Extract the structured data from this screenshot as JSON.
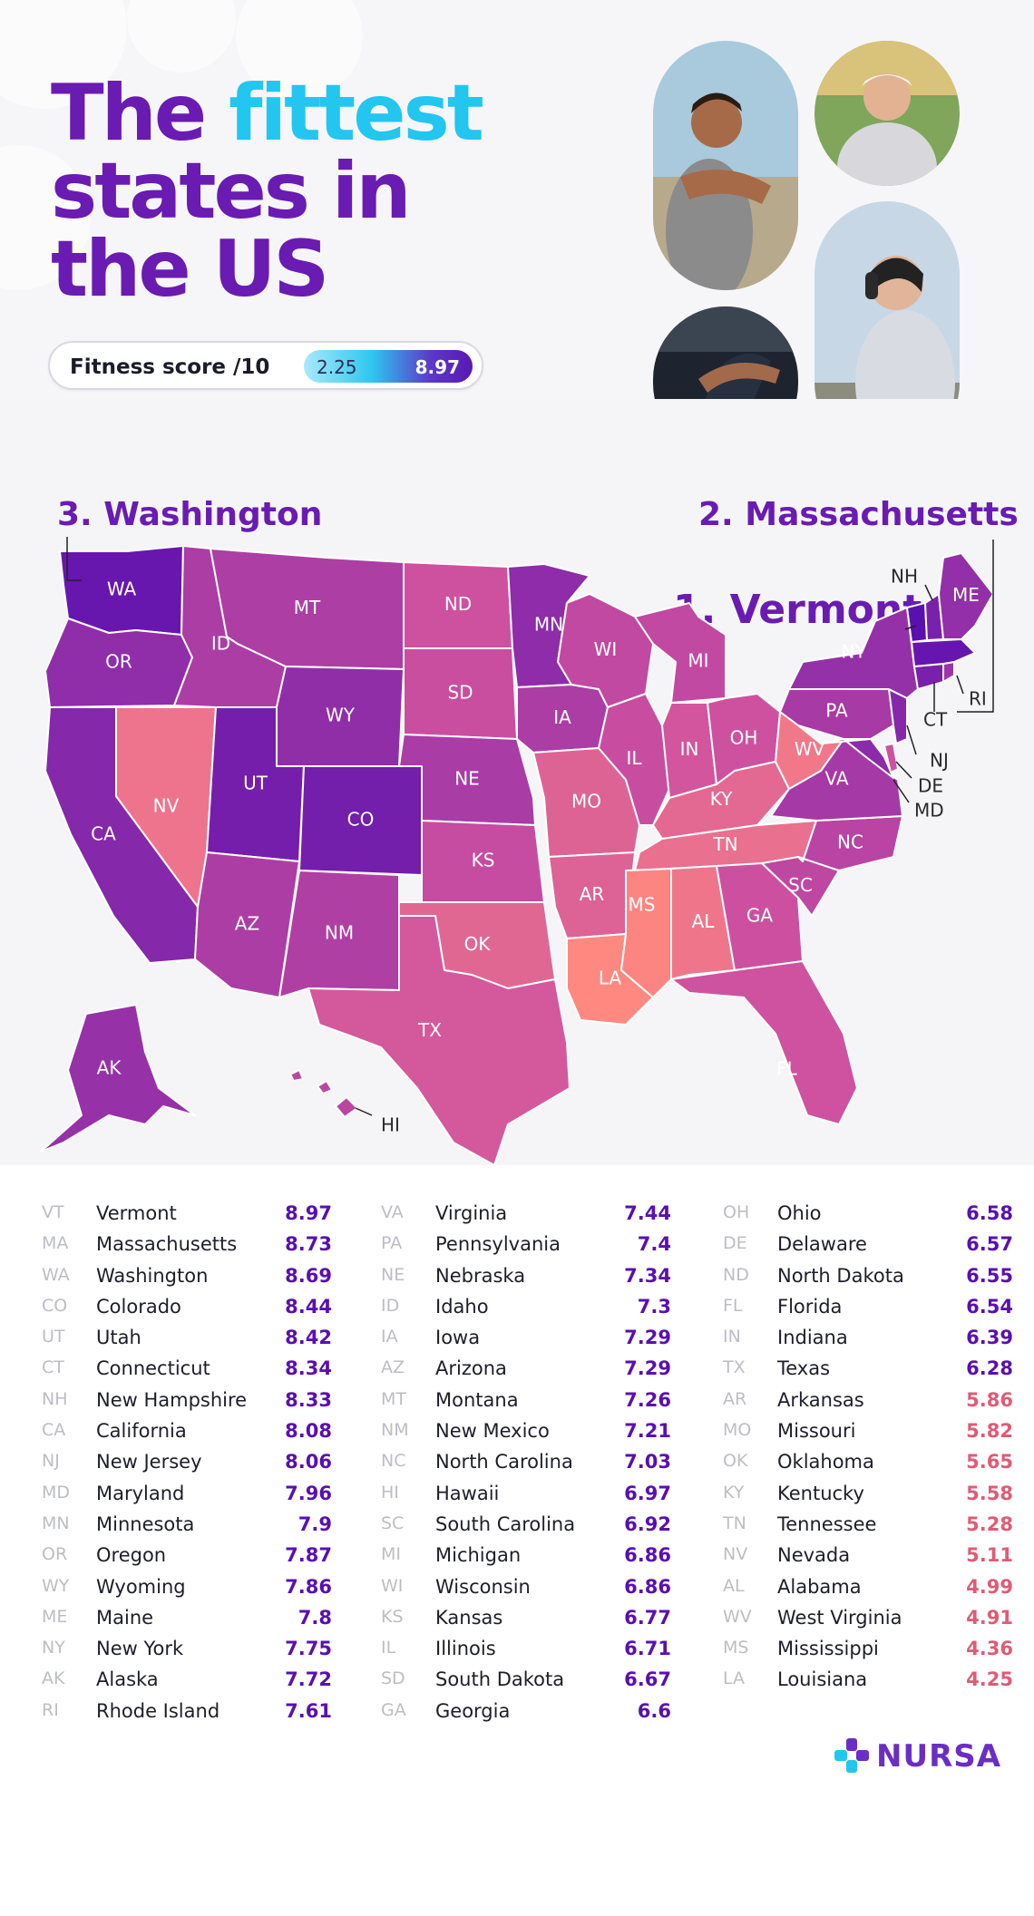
{
  "header": {
    "title_part1": "The ",
    "title_accent": "fittest",
    "title_line2": "states in",
    "title_line3": "the US",
    "score_label": "Fitness score /10",
    "score_min": "2.25",
    "score_max": "8.97"
  },
  "callouts": {
    "first": "1.  Vermont",
    "second": "2. Massachusetts",
    "third": "3. Washington"
  },
  "colors": {
    "title": "#6a1bb2",
    "accent": "#22c6ee",
    "high": "#5a0fb0",
    "low": "#ff8880"
  },
  "map_labels": {
    "WA": "WA",
    "OR": "OR",
    "CA": "CA",
    "ID": "ID",
    "NV": "NV",
    "MT": "MT",
    "WY": "WY",
    "UT": "UT",
    "CO": "CO",
    "AZ": "AZ",
    "NM": "NM",
    "ND": "ND",
    "SD": "SD",
    "NE": "NE",
    "KS": "KS",
    "OK": "OK",
    "TX": "TX",
    "MN": "MN",
    "IA": "IA",
    "MO": "MO",
    "AR": "AR",
    "LA": "LA",
    "WI": "WI",
    "IL": "IL",
    "MI": "MI",
    "IN": "IN",
    "OH": "OH",
    "KY": "KY",
    "TN": "TN",
    "MS": "MS",
    "AL": "AL",
    "GA": "GA",
    "FL": "FL",
    "SC": "SC",
    "NC": "NC",
    "VA": "VA",
    "WV": "WV",
    "PA": "PA",
    "NY": "NY",
    "ME": "ME",
    "NH": "NH",
    "RI": "RI",
    "CT": "CT",
    "NJ": "NJ",
    "DE": "DE",
    "MD": "MD",
    "AK": "AK",
    "HI": "HI"
  },
  "scores": {
    "VT": 8.97,
    "MA": 8.73,
    "WA": 8.69,
    "CO": 8.44,
    "UT": 8.42,
    "CT": 8.34,
    "NH": 8.33,
    "CA": 8.08,
    "NJ": 8.06,
    "MD": 7.96,
    "MN": 7.9,
    "OR": 7.87,
    "WY": 7.86,
    "ME": 7.8,
    "NY": 7.75,
    "AK": 7.72,
    "RI": 7.61,
    "VA": 7.44,
    "PA": 7.4,
    "NE": 7.34,
    "ID": 7.3,
    "IA": 7.29,
    "AZ": 7.29,
    "MT": 7.26,
    "NM": 7.21,
    "NC": 7.03,
    "HI": 6.97,
    "SC": 6.92,
    "MI": 6.86,
    "WI": 6.86,
    "KS": 6.77,
    "IL": 6.71,
    "SD": 6.67,
    "GA": 6.6,
    "OH": 6.58,
    "DE": 6.57,
    "ND": 6.55,
    "FL": 6.54,
    "IN": 6.39,
    "TX": 6.28,
    "AR": 5.86,
    "MO": 5.82,
    "OK": 5.65,
    "KY": 5.58,
    "TN": 5.28,
    "NV": 5.11,
    "AL": 4.99,
    "WV": 4.91,
    "MS": 4.36,
    "LA": 4.25
  },
  "rankings": [
    [
      {
        "abbr": "VT",
        "name": "Vermont",
        "score": "8.97"
      },
      {
        "abbr": "MA",
        "name": "Massachusetts",
        "score": "8.73"
      },
      {
        "abbr": "WA",
        "name": "Washington",
        "score": "8.69"
      },
      {
        "abbr": "CO",
        "name": "Colorado",
        "score": "8.44"
      },
      {
        "abbr": "UT",
        "name": "Utah",
        "score": "8.42"
      },
      {
        "abbr": "CT",
        "name": "Connecticut",
        "score": "8.34"
      },
      {
        "abbr": "NH",
        "name": "New Hampshire",
        "score": "8.33"
      },
      {
        "abbr": "CA",
        "name": "California",
        "score": "8.08"
      },
      {
        "abbr": "NJ",
        "name": "New Jersey",
        "score": "8.06"
      },
      {
        "abbr": "MD",
        "name": "Maryland",
        "score": "7.96"
      },
      {
        "abbr": "MN",
        "name": "Minnesota",
        "score": "7.9"
      },
      {
        "abbr": "OR",
        "name": "Oregon",
        "score": "7.87"
      },
      {
        "abbr": "WY",
        "name": "Wyoming",
        "score": "7.86"
      },
      {
        "abbr": "ME",
        "name": "Maine",
        "score": "7.8"
      },
      {
        "abbr": "NY",
        "name": "New York",
        "score": "7.75"
      },
      {
        "abbr": "AK",
        "name": "Alaska",
        "score": "7.72"
      },
      {
        "abbr": "RI",
        "name": "Rhode Island",
        "score": "7.61"
      }
    ],
    [
      {
        "abbr": "VA",
        "name": "Virginia",
        "score": "7.44"
      },
      {
        "abbr": "PA",
        "name": "Pennsylvania",
        "score": "7.4"
      },
      {
        "abbr": "NE",
        "name": "Nebraska",
        "score": "7.34"
      },
      {
        "abbr": "ID",
        "name": "Idaho",
        "score": "7.3"
      },
      {
        "abbr": "IA",
        "name": "Iowa",
        "score": "7.29"
      },
      {
        "abbr": "AZ",
        "name": "Arizona",
        "score": "7.29"
      },
      {
        "abbr": "MT",
        "name": "Montana",
        "score": "7.26"
      },
      {
        "abbr": "NM",
        "name": "New Mexico",
        "score": "7.21"
      },
      {
        "abbr": "NC",
        "name": "North Carolina",
        "score": "7.03"
      },
      {
        "abbr": "HI",
        "name": "Hawaii",
        "score": "6.97"
      },
      {
        "abbr": "SC",
        "name": "South Carolina",
        "score": "6.92"
      },
      {
        "abbr": "MI",
        "name": "Michigan",
        "score": "6.86"
      },
      {
        "abbr": "WI",
        "name": "Wisconsin",
        "score": "6.86"
      },
      {
        "abbr": "KS",
        "name": "Kansas",
        "score": "6.77"
      },
      {
        "abbr": "IL",
        "name": "Illinois",
        "score": "6.71"
      },
      {
        "abbr": "SD",
        "name": "South Dakota",
        "score": "6.67"
      },
      {
        "abbr": "GA",
        "name": "Georgia",
        "score": "6.6"
      }
    ],
    [
      {
        "abbr": "OH",
        "name": "Ohio",
        "score": "6.58"
      },
      {
        "abbr": "DE",
        "name": "Delaware",
        "score": "6.57"
      },
      {
        "abbr": "ND",
        "name": "North Dakota",
        "score": "6.55"
      },
      {
        "abbr": "FL",
        "name": "Florida",
        "score": "6.54"
      },
      {
        "abbr": "IN",
        "name": "Indiana",
        "score": "6.39"
      },
      {
        "abbr": "TX",
        "name": "Texas",
        "score": "6.28"
      },
      {
        "abbr": "AR",
        "name": "Arkansas",
        "score": "5.86"
      },
      {
        "abbr": "MO",
        "name": "Missouri",
        "score": "5.82"
      },
      {
        "abbr": "OK",
        "name": "Oklahoma",
        "score": "5.65"
      },
      {
        "abbr": "KY",
        "name": "Kentucky",
        "score": "5.58"
      },
      {
        "abbr": "TN",
        "name": "Tennessee",
        "score": "5.28"
      },
      {
        "abbr": "NV",
        "name": "Nevada",
        "score": "5.11"
      },
      {
        "abbr": "AL",
        "name": "Alabama",
        "score": "4.99"
      },
      {
        "abbr": "WV",
        "name": "West Virginia",
        "score": "4.91"
      },
      {
        "abbr": "MS",
        "name": "Mississippi",
        "score": "4.36"
      },
      {
        "abbr": "LA",
        "name": "Louisiana",
        "score": "4.25"
      }
    ]
  ],
  "logo": {
    "text": "NURSA",
    "icon": "nursa-logo-icon"
  }
}
